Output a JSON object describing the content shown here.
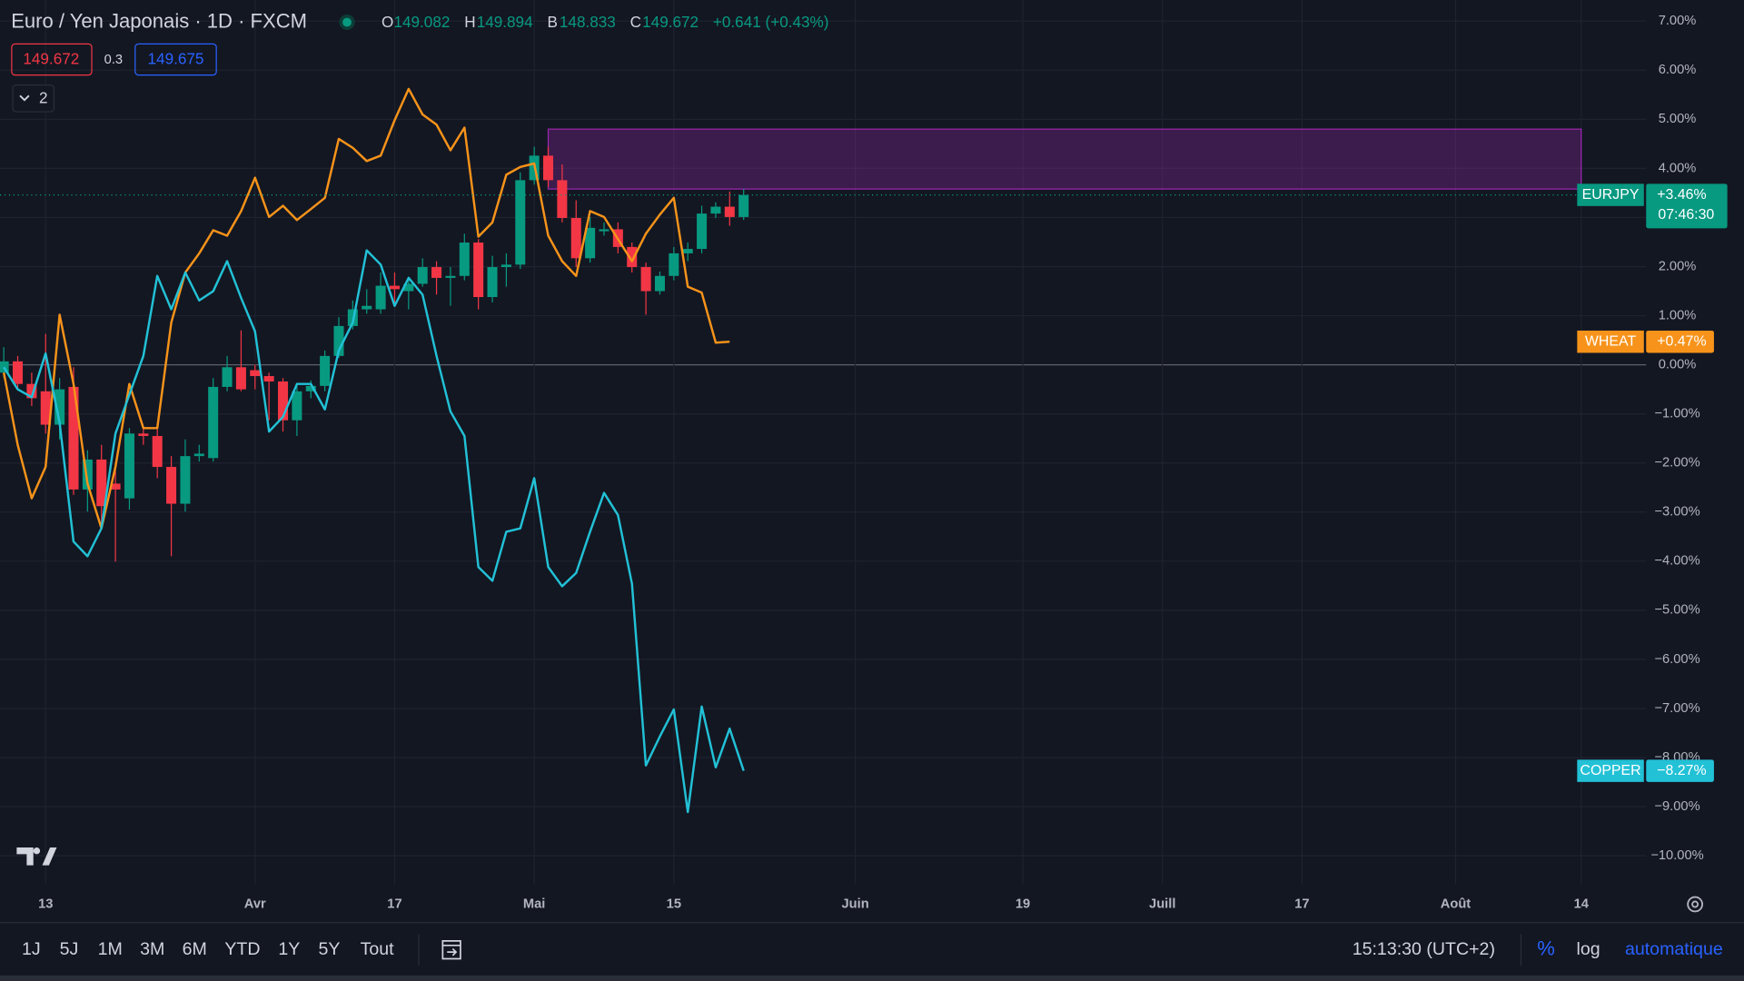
{
  "header": {
    "title": "Euro / Yen Japonais · 1D · FXCM",
    "ohlc": [
      {
        "label": "O",
        "value": "149.082"
      },
      {
        "label": "H",
        "value": "149.894"
      },
      {
        "label": "B",
        "value": "148.833"
      },
      {
        "label": "C",
        "value": "149.672"
      }
    ],
    "change": "+0.641 (+0.43%)",
    "sell": "149.672",
    "spread": "0.3",
    "buy": "149.675",
    "indicators": "2"
  },
  "chart_data": {
    "type": "candlestick",
    "symbol": "EURJPY",
    "countdown": "07:46:30",
    "up_color": "#089981",
    "down_color": "#f23645",
    "grid": true,
    "x": [
      -3,
      -2,
      -1,
      0,
      1,
      2,
      3,
      4,
      5,
      6,
      7,
      8,
      9,
      10,
      11,
      12,
      13,
      14,
      15,
      16,
      17,
      18,
      19,
      20,
      21,
      22,
      23,
      24,
      25,
      26,
      27,
      28,
      29,
      30,
      31,
      32,
      33,
      34,
      35,
      36,
      37,
      38,
      39,
      40,
      41,
      42,
      43,
      44,
      45,
      46,
      47,
      48,
      49,
      50
    ],
    "open": [
      -0.16,
      0.07,
      -0.39,
      -0.54,
      -1.22,
      -0.45,
      -2.54,
      -1.93,
      -2.42,
      -2.72,
      -1.4,
      -1.45,
      -2.08,
      -2.83,
      -1.86,
      -1.9,
      -0.45,
      -0.05,
      -0.11,
      -0.23,
      -0.34,
      -1.13,
      -0.54,
      -0.43,
      0.18,
      0.79,
      1.13,
      1.13,
      1.61,
      1.5,
      1.65,
      1.99,
      1.77,
      1.81,
      2.49,
      1.38,
      1.99,
      2.04,
      3.76,
      4.26,
      3.76,
      2.99,
      2.17,
      2.72,
      2.76,
      2.4,
      1.99,
      1.5,
      1.81,
      2.27,
      2.36,
      3.08,
      3.22,
      3.01
    ],
    "high": [
      0.36,
      0.18,
      -0.16,
      0.63,
      -0.27,
      -0.05,
      -1.74,
      -1.63,
      -2.08,
      -1.29,
      -1.29,
      -1.29,
      -1.86,
      -1.52,
      -1.63,
      -0.27,
      0.18,
      0.7,
      0,
      -0.16,
      -0.27,
      -0.39,
      -0.32,
      0.29,
      0.97,
      1.31,
      1.54,
      1.88,
      1.88,
      1.77,
      2.17,
      2.11,
      1.99,
      2.67,
      2.56,
      2.22,
      2.27,
      3.92,
      4.44,
      4.44,
      4.08,
      3.35,
      3.01,
      2.9,
      2.9,
      2.49,
      2.08,
      1.9,
      2.4,
      2.49,
      3.24,
      3.31,
      3.53,
      3.58
    ],
    "low": [
      -0.27,
      -0.5,
      -0.84,
      -1.4,
      -1.52,
      -2.65,
      -2.99,
      -3.33,
      -4.01,
      -2.95,
      -1.63,
      -2.31,
      -3.9,
      -2.99,
      -1.97,
      -1.97,
      -0.54,
      -0.54,
      -0.5,
      -1.13,
      -1.36,
      -1.45,
      -0.68,
      -0.54,
      0.14,
      0.72,
      1.04,
      1.04,
      1.2,
      1.13,
      1.59,
      1.43,
      1.2,
      1.72,
      1.13,
      1.27,
      1.59,
      1.95,
      3.67,
      3.62,
      2.9,
      1.99,
      2.08,
      2.63,
      2.27,
      1.88,
      1.02,
      1.43,
      1.72,
      2.11,
      2.27,
      2.99,
      2.83,
      2.95
    ],
    "close": [
      0.07,
      -0.39,
      -0.68,
      -1.22,
      -0.5,
      -2.54,
      -1.93,
      -2.88,
      -2.54,
      -1.4,
      -1.45,
      -2.08,
      -2.83,
      -1.86,
      -1.81,
      -0.45,
      -0.05,
      -0.5,
      -0.23,
      -0.34,
      -1.13,
      -0.54,
      -0.43,
      0.18,
      0.79,
      1.13,
      1.2,
      1.61,
      1.54,
      1.65,
      1.99,
      1.77,
      1.81,
      2.49,
      1.38,
      1.99,
      2.04,
      3.76,
      4.26,
      3.76,
      2.99,
      2.17,
      2.79,
      2.76,
      2.4,
      1.99,
      1.5,
      1.81,
      2.27,
      2.36,
      3.08,
      3.22,
      3.01,
      3.46
    ],
    "value_labels": [
      null,
      null,
      null,
      null,
      null,
      null,
      null,
      null,
      null,
      null,
      null,
      null,
      null,
      null,
      null,
      null,
      null,
      null,
      null,
      null,
      null,
      null,
      null,
      null,
      null,
      null,
      null,
      null,
      null,
      null,
      null,
      null,
      null,
      null,
      null,
      null,
      null,
      null,
      null,
      null,
      null,
      null,
      null,
      null,
      null,
      null,
      null,
      null,
      null,
      null,
      null,
      null,
      null,
      "+3.46%"
    ],
    "series": [
      {
        "name": "WHEAT",
        "color": "#f7931a",
        "values": [
          -0.16,
          -1.63,
          -2.72,
          -2.08,
          1.02,
          -0.39,
          -2.42,
          -3.33,
          -2.08,
          -0.39,
          -1.29,
          -1.29,
          0.86,
          1.88,
          2.27,
          2.74,
          2.63,
          3.13,
          3.81,
          3.01,
          3.24,
          2.95,
          3.17,
          3.4,
          4.6,
          4.42,
          4.15,
          4.26,
          4.98,
          5.62,
          5.1,
          4.89,
          4.37,
          4.83,
          2.61,
          2.9,
          3.87,
          4.03,
          4.1,
          2.63,
          2.11,
          1.81,
          3.13,
          3.01,
          2.56,
          2.11,
          2.67,
          3.06,
          3.4,
          1.59,
          1.47,
          0.45,
          0.47,
          null
        ],
        "value_labels": [
          null,
          null,
          null,
          null,
          null,
          null,
          null,
          null,
          null,
          null,
          null,
          null,
          null,
          null,
          null,
          null,
          null,
          null,
          null,
          null,
          null,
          null,
          null,
          null,
          null,
          null,
          null,
          null,
          null,
          null,
          null,
          null,
          null,
          null,
          null,
          null,
          null,
          null,
          null,
          null,
          null,
          null,
          null,
          null,
          null,
          null,
          null,
          null,
          null,
          null,
          null,
          null,
          "+0.47%",
          null
        ]
      },
      {
        "name": "COPPER",
        "color": "#22c1d6",
        "values": [
          -0.05,
          -0.5,
          -0.66,
          0.23,
          -1.18,
          -3.6,
          -3.9,
          -3.33,
          -1.4,
          -0.61,
          0.18,
          1.81,
          1.13,
          1.88,
          1.31,
          1.5,
          2.11,
          1.36,
          0.68,
          -1.36,
          -1.06,
          -0.39,
          -0.39,
          -0.91,
          0.29,
          0.86,
          2.33,
          2.04,
          1.2,
          1.77,
          1.43,
          0.18,
          -0.95,
          -1.45,
          -4.12,
          -4.4,
          -3.4,
          -3.33,
          -2.31,
          -4.12,
          -4.51,
          -4.24,
          -3.4,
          -2.61,
          -3.06,
          -4.46,
          -8.16,
          -7.57,
          -7.02,
          -9.11,
          -6.96,
          -8.2,
          -7.41,
          -8.27
        ],
        "value_labels": [
          null,
          null,
          null,
          null,
          null,
          null,
          null,
          null,
          null,
          null,
          null,
          null,
          null,
          null,
          null,
          null,
          null,
          null,
          null,
          null,
          null,
          null,
          null,
          null,
          null,
          null,
          null,
          null,
          null,
          null,
          null,
          null,
          null,
          null,
          null,
          null,
          null,
          null,
          null,
          null,
          null,
          null,
          null,
          null,
          null,
          null,
          null,
          null,
          null,
          null,
          null,
          null,
          null,
          "−8.27%"
        ]
      }
    ],
    "zone": {
      "x": [
        36,
        110
      ],
      "y": [
        3.58,
        4.8
      ],
      "color": "#9c27b0"
    },
    "xlim": [
      -3.27,
      114.65
    ],
    "xticks": [
      {
        "value": 0,
        "label": "13"
      },
      {
        "value": 15,
        "label": "Avr"
      },
      {
        "value": 25,
        "label": "17"
      },
      {
        "value": 35,
        "label": "Mai"
      },
      {
        "value": 45,
        "label": "15"
      },
      {
        "value": 58,
        "label": "Juin"
      },
      {
        "value": 70,
        "label": "19"
      },
      {
        "value": 80,
        "label": "Juill"
      },
      {
        "value": 90,
        "label": "17"
      },
      {
        "value": 101,
        "label": "Août"
      },
      {
        "value": 110,
        "label": "14"
      }
    ],
    "ylim": [
      -10.58,
      7.43
    ],
    "yticks": [
      {
        "value": 7,
        "label": "7.00%"
      },
      {
        "value": 6,
        "label": "6.00%"
      },
      {
        "value": 5,
        "label": "5.00%"
      },
      {
        "value": 4,
        "label": "4.00%"
      },
      {
        "value": 3,
        "label": "3.00%"
      },
      {
        "value": 2,
        "label": "2.00%"
      },
      {
        "value": 1,
        "label": "1.00%"
      },
      {
        "value": 0,
        "label": "0.00%"
      },
      {
        "value": -1,
        "label": "−1.00%"
      },
      {
        "value": -2,
        "label": "−2.00%"
      },
      {
        "value": -3,
        "label": "−3.00%"
      },
      {
        "value": -4,
        "label": "−4.00%"
      },
      {
        "value": -5,
        "label": "−5.00%"
      },
      {
        "value": -6,
        "label": "−6.00%"
      },
      {
        "value": -7,
        "label": "−7.00%"
      },
      {
        "value": -8,
        "label": "−8.00%"
      },
      {
        "value": -9,
        "label": "−9.00%"
      },
      {
        "value": -10,
        "label": "−10.00%"
      }
    ]
  },
  "toolbar": {
    "ranges": [
      "1J",
      "5J",
      "1M",
      "3M",
      "6M",
      "YTD",
      "1Y",
      "5Y",
      "Tout"
    ],
    "time": "15:13:30 (UTC+2)",
    "percent": "%",
    "log": "log",
    "scale": "automatique"
  }
}
